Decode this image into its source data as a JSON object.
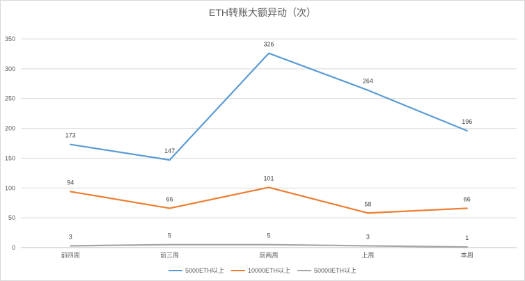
{
  "chart_data": {
    "type": "line",
    "title": "ETH转账大额异动（次）",
    "categories": [
      "前四周",
      "前三周",
      "前两周",
      "上周",
      "本周"
    ],
    "ylim": [
      0,
      350
    ],
    "yticks": [
      0,
      50,
      100,
      150,
      200,
      250,
      300,
      350
    ],
    "grid": true,
    "legend_position": "bottom",
    "series": [
      {
        "name": "5000ETH以上",
        "color": "#5b9bd5",
        "values": [
          173,
          147,
          326,
          264,
          196
        ]
      },
      {
        "name": "10000ETH以上",
        "color": "#ed7d31",
        "values": [
          94,
          66,
          101,
          58,
          66
        ]
      },
      {
        "name": "50000ETH以上",
        "color": "#a5a5a5",
        "values": [
          3,
          5,
          5,
          3,
          1
        ]
      }
    ]
  }
}
